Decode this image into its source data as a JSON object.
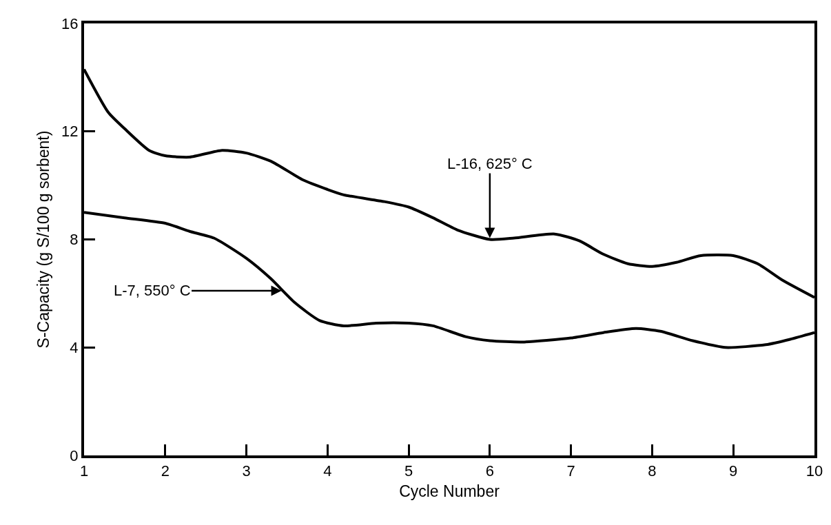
{
  "chart_data": {
    "type": "line",
    "xlabel": "Cycle Number",
    "ylabel": "S-Capacity (g S/100 g sorbent)",
    "xlim": [
      1,
      10
    ],
    "xticks": [
      1,
      2,
      3,
      4,
      5,
      6,
      7,
      8,
      9,
      10
    ],
    "ylim": [
      0,
      16
    ],
    "yticks": [
      0,
      4,
      8,
      12,
      16
    ],
    "marker": "none",
    "line_style": "solid",
    "series": [
      {
        "color": "#000000",
        "x": [
          1,
          1.3,
          1.5,
          1.8,
          2,
          2.3,
          2.7,
          3,
          3.3,
          3.7,
          4,
          4.2,
          4.7,
          5,
          5.3,
          5.6,
          6,
          6.3,
          6.8,
          7.1,
          7.4,
          7.7,
          8,
          8.3,
          8.6,
          9,
          9.3,
          9.6,
          10
        ],
        "values": [
          14.3,
          12.7,
          12.1,
          11.3,
          11.1,
          11.05,
          11.3,
          11.2,
          10.9,
          10.2,
          9.85,
          9.65,
          9.4,
          9.2,
          8.8,
          8.35,
          8.0,
          8.05,
          8.2,
          7.95,
          7.45,
          7.1,
          7.0,
          7.15,
          7.4,
          7.4,
          7.1,
          6.5,
          5.85
        ]
      },
      {
        "color": "#000000",
        "x": [
          1,
          1.5,
          2,
          2.3,
          2.6,
          3,
          3.3,
          3.6,
          3.9,
          4.2,
          4.6,
          5,
          5.3,
          5.7,
          6,
          6.4,
          7,
          7.4,
          7.8,
          8.1,
          8.5,
          8.9,
          9.4,
          9.7,
          10
        ],
        "values": [
          9.0,
          8.8,
          8.6,
          8.3,
          8.05,
          7.3,
          6.55,
          5.65,
          5.0,
          4.8,
          4.9,
          4.9,
          4.8,
          4.4,
          4.25,
          4.2,
          4.35,
          4.55,
          4.7,
          4.6,
          4.25,
          4.0,
          4.1,
          4.3,
          4.55
        ]
      }
    ],
    "annotations": [
      {
        "text": "L-16, 625° C",
        "x": 6,
        "y": 8.0
      },
      {
        "text": "L-7, 550° C",
        "x": 3.45,
        "y": 6.1
      }
    ]
  }
}
